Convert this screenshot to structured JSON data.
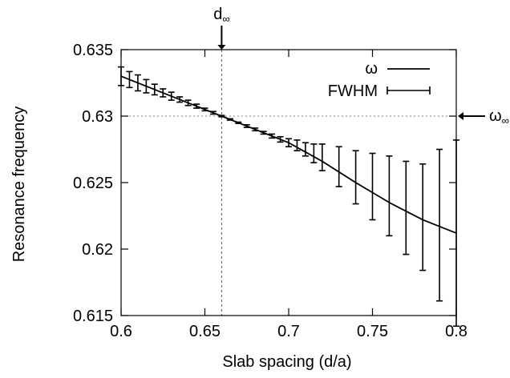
{
  "chart_data": {
    "type": "line",
    "xlabel": "Slab spacing (d/a)",
    "ylabel": "Resonance frequency",
    "xlim": [
      0.6,
      0.8
    ],
    "ylim": [
      0.615,
      0.635
    ],
    "xticks": [
      0.6,
      0.65,
      0.7,
      0.75,
      0.8
    ],
    "xtick_labels": [
      "0.6",
      "0.65",
      "0.7",
      "0.75",
      "0.8"
    ],
    "yticks": [
      0.615,
      0.62,
      0.625,
      0.63,
      0.635
    ],
    "ytick_labels": [
      "0.615",
      "0.62",
      "0.625",
      "0.63",
      "0.635"
    ],
    "grid": false,
    "legend": {
      "placement": "top-right",
      "entries": [
        {
          "label": "ω",
          "style": "line"
        },
        {
          "label": "FWHM",
          "style": "errorbar"
        }
      ]
    },
    "series": [
      {
        "name": "ω",
        "x": [
          0.6,
          0.62,
          0.64,
          0.66,
          0.68,
          0.7,
          0.72,
          0.74,
          0.76,
          0.78,
          0.8
        ],
        "y": [
          0.633,
          0.632,
          0.631,
          0.63,
          0.629,
          0.628,
          0.6266,
          0.625,
          0.6235,
          0.6222,
          0.6212
        ]
      },
      {
        "name": "FWHM",
        "type": "errorbar",
        "x": [
          0.6,
          0.605,
          0.61,
          0.615,
          0.62,
          0.625,
          0.63,
          0.635,
          0.64,
          0.645,
          0.65,
          0.655,
          0.66,
          0.665,
          0.67,
          0.675,
          0.68,
          0.685,
          0.69,
          0.695,
          0.7,
          0.705,
          0.71,
          0.715,
          0.72,
          0.73,
          0.74,
          0.75,
          0.76,
          0.77,
          0.78,
          0.79,
          0.8
        ],
        "y": [
          0.633,
          0.63275,
          0.6325,
          0.63225,
          0.632,
          0.63175,
          0.6315,
          0.63125,
          0.631,
          0.63075,
          0.6305,
          0.63025,
          0.63,
          0.62975,
          0.6295,
          0.62925,
          0.629,
          0.62875,
          0.6285,
          0.62825,
          0.628,
          0.6278,
          0.6275,
          0.6272,
          0.6269,
          0.6262,
          0.6254,
          0.6247,
          0.624,
          0.6231,
          0.6224,
          0.6218,
          0.6212
        ],
        "yerr": [
          0.0007,
          0.0006,
          0.0006,
          0.0005,
          0.0004,
          0.0003,
          0.0003,
          0.0002,
          0.0002,
          0.00015,
          0.0001,
          0.0001,
          5e-05,
          5e-05,
          5e-05,
          0.0001,
          0.0001,
          0.0001,
          0.00015,
          0.0002,
          0.0003,
          0.0004,
          0.0005,
          0.0007,
          0.001,
          0.0015,
          0.002,
          0.0025,
          0.003,
          0.0035,
          0.004,
          0.0057,
          0.007
        ]
      }
    ],
    "reference_lines": [
      {
        "orientation": "vertical",
        "value": 0.66,
        "style": "dashed",
        "label": "d∞"
      },
      {
        "orientation": "horizontal",
        "value": 0.63,
        "style": "dotted",
        "label": "ω∞"
      }
    ]
  }
}
